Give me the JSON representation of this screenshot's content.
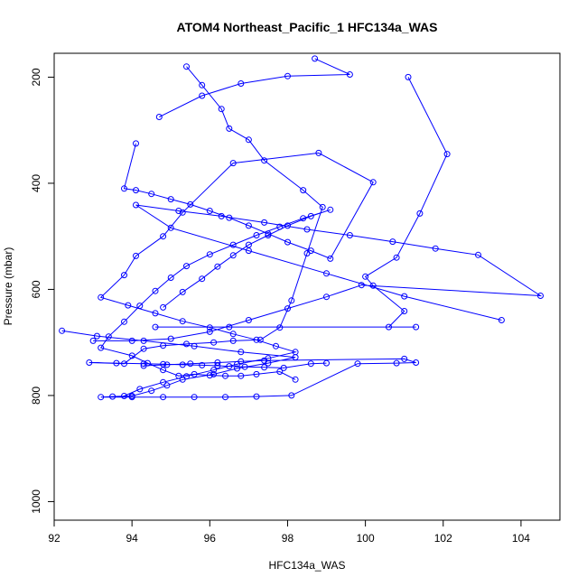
{
  "chart_data": {
    "type": "line",
    "title": "ATOM4 Northeast_Pacific_1 HFC134a_WAS",
    "xlabel": "HFC134a_WAS",
    "ylabel": "Pressure (mbar)",
    "xlim": [
      92,
      105
    ],
    "ylim": [
      1035,
      155
    ],
    "y_inverted": true,
    "xticks": [
      92,
      94,
      96,
      98,
      100,
      102,
      104
    ],
    "yticks": [
      200,
      400,
      600,
      800,
      1000
    ],
    "grid": false,
    "legend": "none",
    "marker": "open-circle",
    "color": "#0000ff",
    "series": [
      {
        "x": [
          98.7,
          99.6,
          98.0,
          96.8,
          95.8,
          94.7
        ],
        "y": [
          165,
          195,
          198,
          212,
          235,
          275
        ]
      },
      {
        "x": [
          101.1,
          102.1,
          101.4,
          100.8,
          100.0,
          100.2,
          101.0,
          100.6,
          101.3,
          96.5,
          94.6
        ],
        "y": [
          200,
          345,
          457,
          540,
          576,
          593,
          641,
          671,
          671,
          671,
          671
        ]
      },
      {
        "x": [
          95.4,
          95.8,
          96.3,
          96.5,
          97.0,
          97.4,
          98.4,
          98.9,
          98.5,
          98.1,
          97.8,
          97.3,
          96.6,
          96.1,
          95.4,
          94.8,
          94.3,
          93.8,
          92.9,
          93.6,
          94.3,
          94.8,
          95.3,
          95.8,
          96.2,
          96.5,
          96.9,
          97.4,
          97.9,
          98.6,
          99.0
        ],
        "y": [
          180,
          215,
          260,
          297,
          318,
          357,
          413,
          445,
          532,
          621,
          672,
          695,
          697,
          700,
          703,
          706,
          712,
          740,
          738,
          739,
          740,
          741,
          742,
          743,
          744,
          745,
          746,
          747,
          748,
          740,
          739
        ]
      },
      {
        "x": [
          94.8,
          95.3,
          95.8,
          96.2,
          96.6,
          97.0,
          97.5,
          98.0,
          98.6,
          99.1,
          98.4,
          97.8,
          97.2,
          96.6,
          96.0,
          95.4,
          95.0,
          94.6,
          94.2,
          93.8,
          93.4,
          93.2,
          94.0,
          94.4,
          94.8,
          95.2,
          95.6,
          96.0,
          96.4,
          96.8,
          97.2,
          97.8,
          98.2
        ],
        "y": [
          634,
          605,
          580,
          557,
          536,
          516,
          498,
          480,
          462,
          450,
          466,
          482,
          498,
          516,
          534,
          556,
          578,
          603,
          631,
          661,
          689,
          710,
          725,
          739,
          752,
          763,
          760,
          762,
          763,
          763,
          760,
          755,
          770
        ]
      },
      {
        "x": [
          94.1,
          93.8,
          94.1,
          94.5,
          95.0,
          95.5,
          96.0,
          96.5,
          97.0,
          97.5,
          98.0,
          98.6,
          99.1,
          100.2,
          98.8,
          96.6,
          95.3,
          94.8,
          94.1,
          93.8,
          93.2,
          93.9,
          94.6,
          95.3,
          96.0,
          96.6,
          97.2,
          97.7,
          98.2,
          97.5,
          96.7,
          96.1,
          95.4,
          94.8,
          94.2,
          93.8
        ],
        "y": [
          325,
          410,
          413,
          420,
          430,
          440,
          452,
          465,
          480,
          495,
          511,
          527,
          542,
          398,
          343,
          362,
          455,
          500,
          537,
          573,
          615,
          630,
          645,
          660,
          672,
          684,
          695,
          707,
          718,
          730,
          741,
          752,
          764,
          775,
          788,
          801
        ]
      },
      {
        "x": [
          92.2,
          93.1,
          94.3,
          95.6,
          96.8,
          98.2,
          97.5,
          96.7,
          96.1,
          95.3,
          94.9,
          94.5,
          94.0,
          93.5,
          93.2,
          94.0,
          94.8,
          95.6,
          96.4,
          97.2,
          98.1,
          99.8,
          100.8,
          101.3,
          101.0,
          97.4,
          96.8,
          96.2,
          95.5,
          94.9,
          94.3
        ],
        "y": [
          678,
          688,
          697,
          707,
          718,
          728,
          739,
          749,
          760,
          770,
          781,
          791,
          801,
          802,
          803,
          803,
          803,
          803,
          803,
          802,
          800,
          740,
          739,
          738,
          731,
          734,
          736,
          738,
          740,
          742,
          744
        ]
      },
      {
        "x": [
          103.5,
          101.0,
          99.0,
          97.0,
          95.0,
          94.1,
          95.2,
          96.3,
          97.4,
          98.5,
          99.6,
          100.7,
          101.8,
          102.9,
          104.5,
          99.9,
          99.0,
          98.0,
          97.0,
          96.0,
          95.0,
          94.0,
          93.0
        ],
        "y": [
          658,
          613,
          570,
          527,
          484,
          441,
          452,
          462,
          474,
          487,
          498,
          510,
          523,
          535,
          612,
          592,
          614,
          636,
          658,
          680,
          693,
          697,
          697
        ]
      }
    ]
  }
}
